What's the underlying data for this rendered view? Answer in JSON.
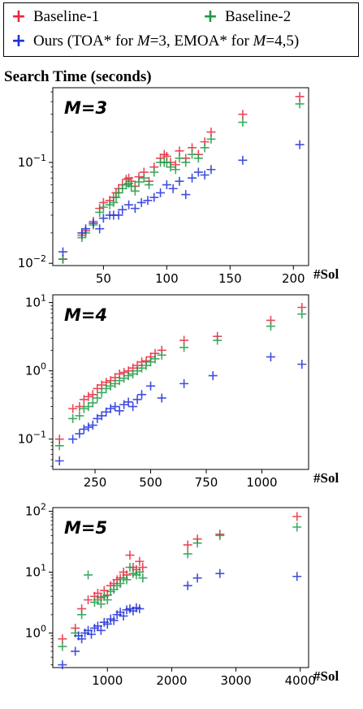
{
  "legend": {
    "items": [
      {
        "name": "Baseline-1",
        "color": "#e8283c"
      },
      {
        "name": "Baseline-2",
        "color": "#1e9b45"
      },
      {
        "name": "Ours (TOA* for M=3, EMOA* for M=4,5)",
        "color": "#1f2fd8"
      }
    ],
    "ours_prefix": "Ours (TOA* for ",
    "ours_m1": "M",
    "ours_mid1": "=3, EMOA* for ",
    "ours_m2": "M",
    "ours_suffix": "=4,5)"
  },
  "section_title": "Search Time (seconds)",
  "chart_data": [
    {
      "type": "scatter",
      "title": "M=3",
      "xlabel": "#Sol",
      "ylabel": "",
      "xlim": [
        10,
        212
      ],
      "ylim": [
        0.0095,
        0.55
      ],
      "yscale": "log",
      "xticks": [
        50,
        100,
        150,
        200
      ],
      "yticks": [
        {
          "value": 0.01,
          "label": "10^-2"
        },
        {
          "value": 0.1,
          "label": "10^-1"
        }
      ],
      "series": [
        {
          "name": "Baseline-1",
          "color": "#e8283c",
          "x": [
            18,
            33,
            36,
            42,
            47,
            50,
            55,
            58,
            60,
            62,
            65,
            68,
            70,
            72,
            75,
            78,
            82,
            86,
            90,
            95,
            98,
            100,
            103,
            107,
            110,
            115,
            120,
            125,
            130,
            135,
            160,
            205
          ],
          "y": [
            0.011,
            0.019,
            0.021,
            0.026,
            0.035,
            0.04,
            0.042,
            0.045,
            0.05,
            0.055,
            0.06,
            0.068,
            0.07,
            0.065,
            0.058,
            0.072,
            0.08,
            0.065,
            0.09,
            0.11,
            0.12,
            0.115,
            0.1,
            0.095,
            0.13,
            0.11,
            0.14,
            0.12,
            0.16,
            0.2,
            0.3,
            0.45
          ]
        },
        {
          "name": "Baseline-2",
          "color": "#1e9b45",
          "x": [
            18,
            33,
            36,
            42,
            47,
            50,
            55,
            58,
            60,
            62,
            65,
            68,
            70,
            72,
            75,
            78,
            82,
            86,
            90,
            95,
            98,
            100,
            103,
            107,
            110,
            115,
            120,
            125,
            130,
            135,
            160,
            205
          ],
          "y": [
            0.011,
            0.018,
            0.02,
            0.024,
            0.032,
            0.036,
            0.038,
            0.04,
            0.045,
            0.05,
            0.055,
            0.06,
            0.062,
            0.058,
            0.052,
            0.064,
            0.07,
            0.06,
            0.08,
            0.1,
            0.1,
            0.1,
            0.09,
            0.085,
            0.11,
            0.1,
            0.12,
            0.11,
            0.14,
            0.17,
            0.25,
            0.38
          ]
        },
        {
          "name": "Ours (TOA* for M=3, EMOA* for M=4,5)",
          "color": "#1f2fd8",
          "x": [
            18,
            33,
            36,
            42,
            47,
            50,
            55,
            58,
            62,
            65,
            70,
            75,
            80,
            85,
            90,
            95,
            100,
            105,
            110,
            115,
            120,
            125,
            130,
            135,
            160,
            205
          ],
          "y": [
            0.013,
            0.02,
            0.022,
            0.025,
            0.022,
            0.028,
            0.03,
            0.03,
            0.03,
            0.034,
            0.038,
            0.035,
            0.04,
            0.042,
            0.045,
            0.05,
            0.06,
            0.055,
            0.065,
            0.048,
            0.07,
            0.08,
            0.075,
            0.085,
            0.105,
            0.15
          ]
        }
      ]
    },
    {
      "type": "scatter",
      "title": "M=4",
      "xlabel": "#Sol",
      "ylabel": "",
      "xlim": [
        60,
        1210
      ],
      "ylim": [
        0.036,
        13
      ],
      "yscale": "log",
      "xticks": [
        250,
        500,
        750,
        1000
      ],
      "yticks": [
        {
          "value": 0.1,
          "label": "10^-1"
        },
        {
          "value": 1,
          "label": "10^0"
        },
        {
          "value": 10,
          "label": "10^1"
        }
      ],
      "series": [
        {
          "name": "Baseline-1",
          "color": "#e8283c",
          "x": [
            90,
            150,
            180,
            200,
            220,
            240,
            260,
            280,
            300,
            320,
            340,
            360,
            380,
            400,
            420,
            440,
            460,
            480,
            500,
            520,
            550,
            650,
            800,
            1040,
            1180
          ],
          "y": [
            0.1,
            0.28,
            0.3,
            0.38,
            0.42,
            0.45,
            0.55,
            0.62,
            0.68,
            0.72,
            0.8,
            0.9,
            0.95,
            1.0,
            1.1,
            1.2,
            1.35,
            1.4,
            1.6,
            1.8,
            2.0,
            2.8,
            3.2,
            5.5,
            8.5
          ]
        },
        {
          "name": "Baseline-2",
          "color": "#1e9b45",
          "x": [
            90,
            150,
            180,
            200,
            220,
            240,
            260,
            280,
            300,
            320,
            340,
            360,
            380,
            400,
            420,
            440,
            460,
            480,
            500,
            520,
            550,
            650,
            800,
            1040,
            1180
          ],
          "y": [
            0.08,
            0.2,
            0.22,
            0.28,
            0.3,
            0.34,
            0.4,
            0.48,
            0.55,
            0.6,
            0.65,
            0.72,
            0.78,
            0.85,
            0.9,
            1.0,
            1.1,
            1.2,
            1.35,
            1.5,
            1.7,
            2.2,
            2.8,
            4.5,
            6.8
          ]
        },
        {
          "name": "Ours (TOA* for M=3, EMOA* for M=4,5)",
          "color": "#1f2fd8",
          "x": [
            90,
            150,
            180,
            200,
            220,
            240,
            260,
            280,
            300,
            320,
            340,
            360,
            380,
            400,
            420,
            440,
            460,
            500,
            550,
            650,
            780,
            1040,
            1180
          ],
          "y": [
            0.048,
            0.1,
            0.12,
            0.14,
            0.15,
            0.16,
            0.2,
            0.22,
            0.25,
            0.28,
            0.3,
            0.26,
            0.32,
            0.35,
            0.3,
            0.38,
            0.45,
            0.6,
            0.4,
            0.65,
            0.85,
            1.6,
            1.25
          ]
        }
      ]
    },
    {
      "type": "scatter",
      "title": "M=5",
      "xlabel": "#Sol",
      "ylabel": "",
      "xlim": [
        150,
        4130
      ],
      "ylim": [
        0.27,
        115
      ],
      "yscale": "log",
      "xticks": [
        1000,
        2000,
        3000,
        4000
      ],
      "yticks": [
        {
          "value": 1,
          "label": "10^0"
        },
        {
          "value": 10,
          "label": "10^1"
        },
        {
          "value": 100,
          "label": "10^2"
        }
      ],
      "series": [
        {
          "name": "Baseline-1",
          "color": "#e8283c",
          "x": [
            300,
            500,
            600,
            700,
            800,
            850,
            900,
            950,
            1000,
            1050,
            1100,
            1150,
            1200,
            1250,
            1300,
            1350,
            1400,
            1450,
            1500,
            1550,
            2250,
            2400,
            2750,
            3950
          ],
          "y": [
            0.8,
            1.2,
            2.5,
            3.5,
            4.0,
            4.5,
            3.8,
            5.0,
            4.2,
            6.0,
            6.5,
            7.5,
            8.0,
            10.0,
            9.0,
            19.0,
            12.0,
            11.0,
            15.0,
            12.0,
            28.0,
            35.0,
            42.0,
            82.0
          ]
        },
        {
          "name": "Baseline-2",
          "color": "#1e9b45",
          "x": [
            300,
            500,
            600,
            700,
            800,
            850,
            900,
            950,
            1000,
            1050,
            1100,
            1150,
            1200,
            1250,
            1300,
            1350,
            1400,
            1450,
            1500,
            1550,
            2250,
            2400,
            2750,
            3950
          ],
          "y": [
            0.6,
            1.0,
            2.0,
            9.0,
            3.2,
            3.5,
            3.0,
            4.0,
            3.5,
            4.8,
            5.2,
            6.0,
            6.5,
            8.0,
            7.5,
            12.0,
            9.5,
            9.0,
            10.0,
            8.0,
            20.0,
            30.0,
            40.0,
            55.0
          ]
        },
        {
          "name": "Ours (TOA* for M=3, EMOA* for M=4,5)",
          "color": "#1f2fd8",
          "x": [
            300,
            500,
            550,
            600,
            650,
            700,
            750,
            800,
            850,
            900,
            950,
            1000,
            1050,
            1100,
            1150,
            1200,
            1250,
            1300,
            1350,
            1400,
            1450,
            1500,
            2250,
            2400,
            2750,
            3950
          ],
          "y": [
            0.3,
            0.5,
            0.9,
            0.8,
            1.0,
            1.1,
            0.95,
            1.2,
            1.3,
            1.1,
            1.5,
            1.4,
            1.7,
            1.6,
            2.0,
            2.2,
            1.9,
            2.4,
            2.5,
            2.3,
            2.6,
            2.5,
            6.0,
            8.0,
            9.5,
            8.5
          ]
        }
      ]
    }
  ]
}
